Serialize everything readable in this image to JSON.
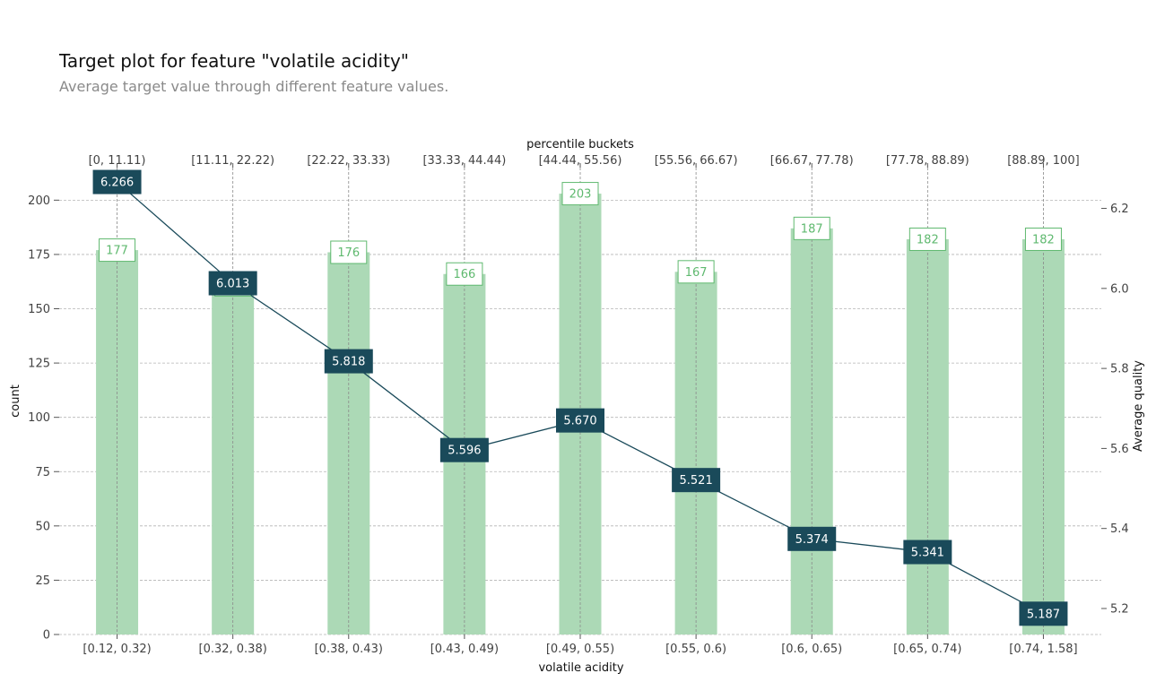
{
  "header": {
    "title": "Target plot for feature \"volatile acidity\"",
    "subtitle": "Average target value through different feature values."
  },
  "colors": {
    "bar": "#acd9b6",
    "bar_label": "#5fb96f",
    "line": "#1a4a5a",
    "grid": "#b5b5b5",
    "vgrid": "#8a8a8a"
  },
  "chart_data": {
    "type": "bar",
    "title": "Target plot for feature \"volatile acidity\"",
    "subtitle": "Average target value through different feature values.",
    "categories": [
      "[0.12, 0.32)",
      "[0.32, 0.38)",
      "[0.38, 0.43)",
      "[0.43, 0.49)",
      "[0.49, 0.55)",
      "[0.55, 0.6)",
      "[0.6, 0.65)",
      "[0.65, 0.74)",
      "[0.74, 1.58]"
    ],
    "percentile_buckets": [
      "[0, 11.11)",
      "[11.11, 22.22)",
      "[22.22, 33.33)",
      "[33.33, 44.44)",
      "[44.44, 55.56)",
      "[55.56, 66.67)",
      "[66.67, 77.78)",
      "[77.78, 88.89)",
      "[88.89, 100]"
    ],
    "xlabel": "volatile acidity",
    "top_xlabel": "percentile buckets",
    "ylabel": "count",
    "y2label": "Average quality",
    "ylim": [
      0,
      215
    ],
    "y2lim": [
      5.135,
      6.302
    ],
    "yticks": [
      0,
      25,
      50,
      75,
      100,
      125,
      150,
      175,
      200
    ],
    "y2ticks": [
      5.2,
      5.4,
      5.6,
      5.8,
      6.0,
      6.2
    ],
    "grid": true,
    "series": [
      {
        "type": "bar",
        "axis": "left",
        "values": [
          177,
          161,
          176,
          166,
          203,
          167,
          187,
          182,
          182
        ]
      },
      {
        "type": "line",
        "axis": "right",
        "values": [
          6.266,
          6.013,
          5.818,
          5.596,
          5.67,
          5.521,
          5.374,
          5.341,
          5.187
        ]
      }
    ]
  }
}
